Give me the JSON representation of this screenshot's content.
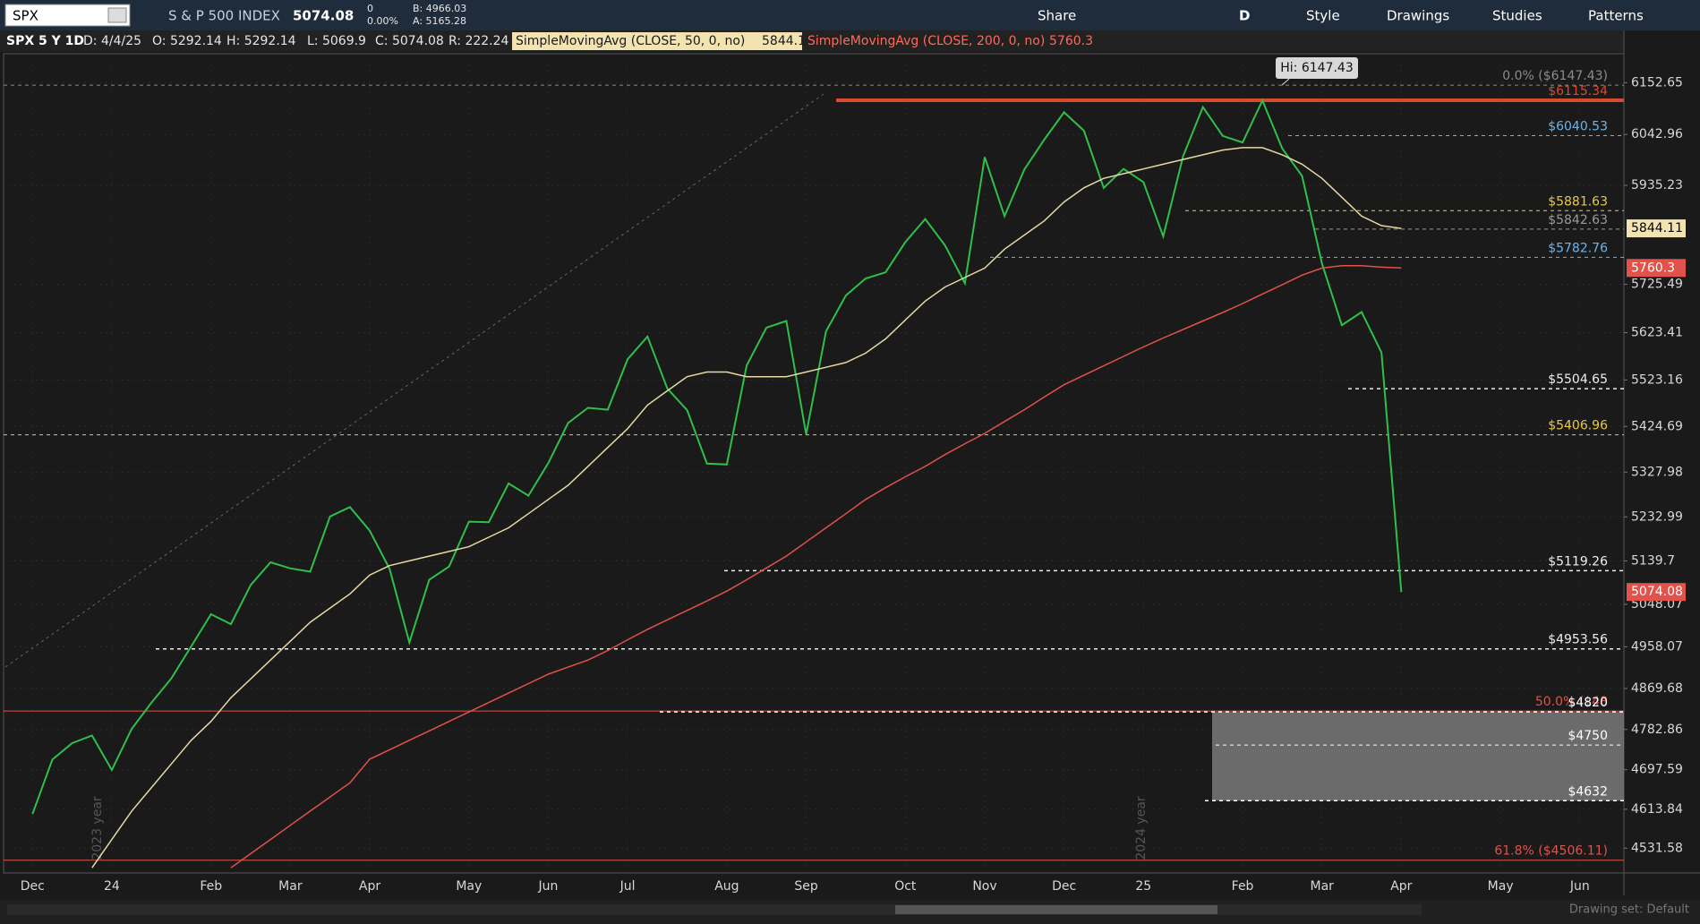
{
  "toolbar": {
    "symbol": "SPX",
    "description": "S & P 500 INDEX",
    "last": "5074.08",
    "change": "0",
    "change_pct": "0.00%",
    "bid": "B: 4966.03",
    "ask": "A: 5165.28",
    "buttons": [
      "Share",
      "D",
      "Style",
      "Drawings",
      "Studies",
      "Patterns"
    ]
  },
  "info": {
    "label": "SPX 5 Y 1D",
    "date": "D: 4/4/25",
    "open": "O: 5292.14",
    "high": "H: 5292.14",
    "low": "L: 5069.9",
    "close": "C: 5074.08",
    "range": "R: 222.24",
    "sma50_name": "SimpleMovingAvg (CLOSE, 50, 0, no)",
    "sma50_value": "5844.11",
    "sma200_name": "SimpleMovingAvg (CLOSE, 200, 0, no)",
    "sma200_value": "5760.3"
  },
  "footer": "Drawing set: Default",
  "chart_data": {
    "type": "line",
    "categories": [
      "Dec",
      null,
      null,
      null,
      "24",
      null,
      null,
      null,
      null,
      "Feb",
      null,
      null,
      null,
      "Mar",
      null,
      null,
      null,
      "Apr",
      null,
      null,
      null,
      null,
      "May",
      null,
      null,
      null,
      "Jun",
      null,
      null,
      null,
      "Jul",
      null,
      null,
      null,
      null,
      "Aug",
      null,
      null,
      null,
      "Sep",
      null,
      null,
      null,
      null,
      "Oct",
      null,
      null,
      null,
      "Nov",
      null,
      null,
      null,
      "Dec",
      null,
      null,
      null,
      "25",
      null,
      null,
      null,
      null,
      "Feb",
      null,
      null,
      null,
      "Mar",
      null,
      null,
      null,
      "Apr",
      null,
      null,
      null,
      null,
      "May",
      null,
      null,
      null,
      "Jun"
    ],
    "series": [
      {
        "color": "#2fbf4a",
        "values": [
          4604,
          4719,
          4754,
          4770,
          4697,
          4784,
          4840,
          4891,
          4959,
          5027,
          5006,
          5089,
          5137,
          5124,
          5117,
          5234,
          5254,
          5204,
          5123,
          4967,
          5100,
          5128,
          5223,
          5222,
          5304,
          5278,
          5347,
          5432,
          5464,
          5460,
          5567,
          5615,
          5505,
          5459,
          5346,
          5344,
          5554,
          5634,
          5648,
          5408,
          5626,
          5702,
          5738,
          5751,
          5815,
          5864,
          5808,
          5728,
          5995,
          5870,
          5969,
          6032,
          6090,
          6051,
          5930,
          5970,
          5942,
          5827,
          5997,
          6101,
          6040,
          6026,
          6115,
          6013,
          5955,
          5770,
          5639,
          5667,
          5581,
          5074,
          null,
          null,
          null,
          null,
          null,
          null,
          null,
          null,
          null
        ]
      },
      {
        "color": "#e6d9a2",
        "values": [
          null,
          null,
          null,
          4490,
          4550,
          4610,
          4660,
          4710,
          4760,
          4800,
          4850,
          4890,
          4930,
          4970,
          5010,
          5040,
          5070,
          5110,
          5130,
          5140,
          5150,
          5160,
          5170,
          5190,
          5210,
          5240,
          5270,
          5300,
          5340,
          5380,
          5420,
          5470,
          5500,
          5530,
          5540,
          5540,
          5530,
          5530,
          5530,
          5540,
          5550,
          5560,
          5580,
          5610,
          5650,
          5690,
          5720,
          5740,
          5760,
          5800,
          5830,
          5860,
          5900,
          5930,
          5950,
          5960,
          5970,
          5980,
          5990,
          6000,
          6010,
          6015,
          6015,
          6000,
          5980,
          5950,
          5910,
          5870,
          5850,
          5844.11,
          null,
          null,
          null,
          null,
          null,
          null,
          null,
          null,
          null
        ]
      },
      {
        "color": "#e0524a",
        "values": [
          null,
          null,
          null,
          null,
          null,
          null,
          null,
          null,
          null,
          null,
          4490,
          4520,
          4550,
          4580,
          4610,
          4640,
          4670,
          4720,
          4740,
          4760,
          4780,
          4800,
          4820,
          4840,
          4860,
          4880,
          4900,
          4915,
          4930,
          4950,
          4973,
          4995,
          5015,
          5035,
          5055,
          5076,
          5100,
          5125,
          5150,
          5180,
          5210,
          5240,
          5270,
          5295,
          5318,
          5340,
          5365,
          5388,
          5410,
          5435,
          5460,
          5487,
          5513,
          5533,
          5553,
          5573,
          5593,
          5612,
          5630,
          5648,
          5666,
          5685,
          5705,
          5725,
          5745,
          5760,
          5765,
          5765,
          5762,
          5760.3,
          null,
          null,
          null,
          null,
          null,
          null,
          null,
          null,
          null
        ]
      }
    ],
    "ylim": [
      4479,
      6214
    ],
    "yticks": [
      6152.65,
      6042.96,
      5935.23,
      5725.49,
      5623.41,
      5523.16,
      5424.69,
      5327.98,
      5232.99,
      5139.7,
      5048.07,
      4958.07,
      4869.68,
      4782.86,
      4697.59,
      4613.84,
      4531.58
    ],
    "grid": true,
    "levels": [
      {
        "label": "0.0% ($6147.43)",
        "value": 6147.43,
        "color": "#8c8c8c"
      },
      {
        "label": "$6115.34",
        "value": 6115.34,
        "color": "#d94a2b"
      },
      {
        "label": "$6040.53",
        "value": 6040.53,
        "color": "#6fb3e8"
      },
      {
        "label": "$5881.63",
        "value": 5881.63,
        "color": "#e8c84a"
      },
      {
        "label": "$5842.63",
        "value": 5842.63,
        "color": "#9a9a9a"
      },
      {
        "label": "$5782.76",
        "value": 5782.76,
        "color": "#6fb3e8"
      },
      {
        "label": "$5504.65",
        "value": 5504.65,
        "color": "#eeeeee"
      },
      {
        "label": "$5406.96",
        "value": 5406.96,
        "color": "#e8c84a"
      },
      {
        "label": "$5119.26",
        "value": 5119.26,
        "color": "#eeeeee"
      },
      {
        "label": "$4953.56",
        "value": 4953.56,
        "color": "#eeeeee"
      },
      {
        "label": "50.0% ($48",
        "value": 4822,
        "color": "#e0524a"
      },
      {
        "label": "$4820",
        "value": 4820,
        "color": "#ffffff"
      },
      {
        "label": "$4750",
        "value": 4750,
        "color": "#ffffff"
      },
      {
        "label": "$4632",
        "value": 4632,
        "color": "#ffffff"
      },
      {
        "label": "61.8% ($4506.11)",
        "value": 4506.11,
        "color": "#e0524a"
      }
    ],
    "annotation": {
      "label": "Hi: 6147.43",
      "value": 6147.43
    },
    "price_tags": [
      {
        "label": "5844.11",
        "value": 5844.11,
        "color": "#f2e3b0",
        "text_color": "#000000"
      },
      {
        "label": "5760.3",
        "value": 5760.3,
        "color": "#e0524a",
        "text_color": "#ffffff"
      },
      {
        "label": "5074.08",
        "value": 5074.08,
        "color": "#e0524a",
        "text_color": "#ffffff"
      }
    ],
    "year_labels": [
      "2023 year",
      "2024 year"
    ]
  }
}
